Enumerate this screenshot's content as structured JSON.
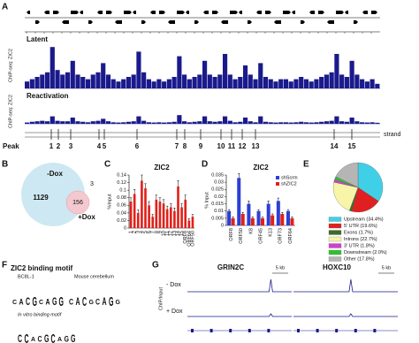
{
  "panel_labels": [
    "A",
    "B",
    "C",
    "D",
    "E",
    "F",
    "G"
  ],
  "a": {
    "tracks": [
      {
        "label": "Latent",
        "ylabel": "ChIP-seq: ZIC2",
        "signal": [
          0.15,
          0.2,
          0.25,
          0.3,
          0.35,
          0.9,
          0.4,
          0.3,
          0.35,
          0.6,
          0.3,
          0.25,
          0.2,
          0.3,
          0.35,
          0.55,
          0.3,
          0.2,
          0.15,
          0.2,
          0.25,
          0.3,
          0.8,
          0.35,
          0.2,
          0.15,
          0.2,
          0.15,
          0.2,
          0.25,
          0.7,
          0.3,
          0.2,
          0.25,
          0.3,
          0.6,
          0.3,
          0.25,
          0.3,
          0.75,
          0.3,
          0.2,
          0.25,
          0.5,
          0.3,
          0.2,
          0.55,
          0.25,
          0.2,
          0.15,
          0.2,
          0.2,
          0.15,
          0.2,
          0.25,
          0.2,
          0.15,
          0.2,
          0.25,
          0.3,
          0.35,
          0.75,
          0.3,
          0.25,
          0.6,
          0.3,
          0.2,
          0.15,
          0.2,
          0.1
        ]
      },
      {
        "label": "Reactivation",
        "ylabel": "ChIP-seq: ZIC2",
        "signal": [
          0.05,
          0.08,
          0.1,
          0.12,
          0.1,
          0.3,
          0.12,
          0.1,
          0.1,
          0.25,
          0.1,
          0.08,
          0.06,
          0.1,
          0.12,
          0.2,
          0.1,
          0.06,
          0.05,
          0.06,
          0.08,
          0.1,
          0.3,
          0.12,
          0.06,
          0.05,
          0.06,
          0.05,
          0.06,
          0.08,
          0.35,
          0.1,
          0.06,
          0.08,
          0.1,
          0.3,
          0.1,
          0.08,
          0.1,
          0.3,
          0.12,
          0.06,
          0.08,
          0.25,
          0.1,
          0.06,
          0.3,
          0.08,
          0.06,
          0.05,
          0.06,
          0.06,
          0.05,
          0.06,
          0.08,
          0.06,
          0.05,
          0.06,
          0.08,
          0.1,
          0.12,
          0.3,
          0.1,
          0.08,
          0.25,
          0.1,
          0.06,
          0.05,
          0.06,
          0.04
        ]
      }
    ],
    "peak_label": "Peak",
    "peaks": [
      "1",
      "2",
      "3",
      "4",
      "5",
      "6",
      "7",
      "8",
      "9",
      "10",
      "11",
      "12",
      "13",
      "14",
      "15"
    ],
    "strand": "strand"
  },
  "b": {
    "minus": "-Dox",
    "plus": "+Dox",
    "only_minus": 1129,
    "both": 156,
    "only_plus": 3
  },
  "chart_data": [
    {
      "type": "bar",
      "title": "ZIC2",
      "y_label": "%Input",
      "color": "#e0211b",
      "categories": [
        "1",
        "2",
        "3",
        "4",
        "5",
        "6",
        "7",
        "8",
        "9",
        "10",
        "11",
        "12",
        "13",
        "14",
        "15",
        "ORF8",
        "ORF64",
        "ORF50"
      ],
      "values": [
        0.07,
        0.09,
        0.04,
        0.125,
        0.105,
        0.06,
        0.03,
        0.075,
        0.07,
        0.065,
        0.05,
        0.055,
        0.045,
        0.11,
        0.055,
        0.075,
        0.02,
        0.03
      ],
      "errors": [
        0.01,
        0.012,
        0.008,
        0.015,
        0.012,
        0.01,
        0.006,
        0.012,
        0.01,
        0.01,
        0.008,
        0.01,
        0.008,
        0.015,
        0.01,
        0.012,
        0.005,
        0.006
      ],
      "ylim": [
        0,
        0.14
      ],
      "yticks": [
        0,
        0.02,
        0.04,
        0.06,
        0.08,
        0.1,
        0.12,
        0.14
      ]
    },
    {
      "type": "grouped_bar",
      "title": "ZIC2",
      "y_label": "% Input",
      "categories": [
        "ORF8",
        "ORF50",
        "K8",
        "ORF45",
        "K13",
        "ORF73",
        "ORF64"
      ],
      "series": [
        {
          "name": "shScrm",
          "color": "#2b3fd6",
          "values": [
            0.01,
            0.033,
            0.015,
            0.01,
            0.015,
            0.017,
            0.01
          ],
          "errors": [
            0.001,
            0.003,
            0.002,
            0.001,
            0.002,
            0.002,
            0.001
          ]
        },
        {
          "name": "shZIC2",
          "color": "#e0211b",
          "values": [
            0.005,
            0.008,
            0.005,
            0.005,
            0.007,
            0.008,
            0.005
          ],
          "errors": [
            0.001,
            0.001,
            0.001,
            0.001,
            0.001,
            0.001,
            0.001
          ]
        }
      ],
      "ylim": [
        0,
        0.035
      ],
      "yticks": [
        0,
        0.005,
        0.01,
        0.015,
        0.02,
        0.025,
        0.03,
        0.035
      ],
      "legend": "upper-right"
    },
    {
      "type": "pie",
      "categories": [
        "Upstream (34.4%)",
        "5' UTR (19.6%)",
        "Exons (1.7%)",
        "Introns (22.7%)",
        "3' UTR (1.8%)",
        "Downstream (2.0%)",
        "Other (17.8%)"
      ],
      "values": [
        34.4,
        19.6,
        1.7,
        22.7,
        1.8,
        2.0,
        17.8
      ],
      "colors": [
        "#3fd0e8",
        "#e02020",
        "#3d6b2a",
        "#f8f4a8",
        "#d040d0",
        "#30c030",
        "#b5b5b5"
      ]
    }
  ],
  "f": {
    "title": "ZIC2 binding motif",
    "motifs": [
      {
        "name": "BC8L-1",
        "letters": [
          "C",
          "A",
          "C",
          "G",
          "C",
          "A",
          "G",
          "G"
        ]
      },
      {
        "name": "Mouse cerebellum",
        "letters": [
          "C",
          "A",
          "C",
          "G",
          "C",
          "A",
          "G",
          "G"
        ]
      },
      {
        "name": "In vitro binding motif",
        "letters": [
          "C",
          "C",
          "A",
          "C",
          "G",
          "C",
          "A",
          "G",
          "G"
        ]
      }
    ]
  },
  "g": {
    "genes": [
      {
        "name": "GRIN2C",
        "scale": "5 kb"
      },
      {
        "name": "HOXC10",
        "scale": "5 kb"
      }
    ],
    "conditions": [
      "- Dox",
      "+ Dox"
    ],
    "ylabel": "ChIP/Input"
  }
}
